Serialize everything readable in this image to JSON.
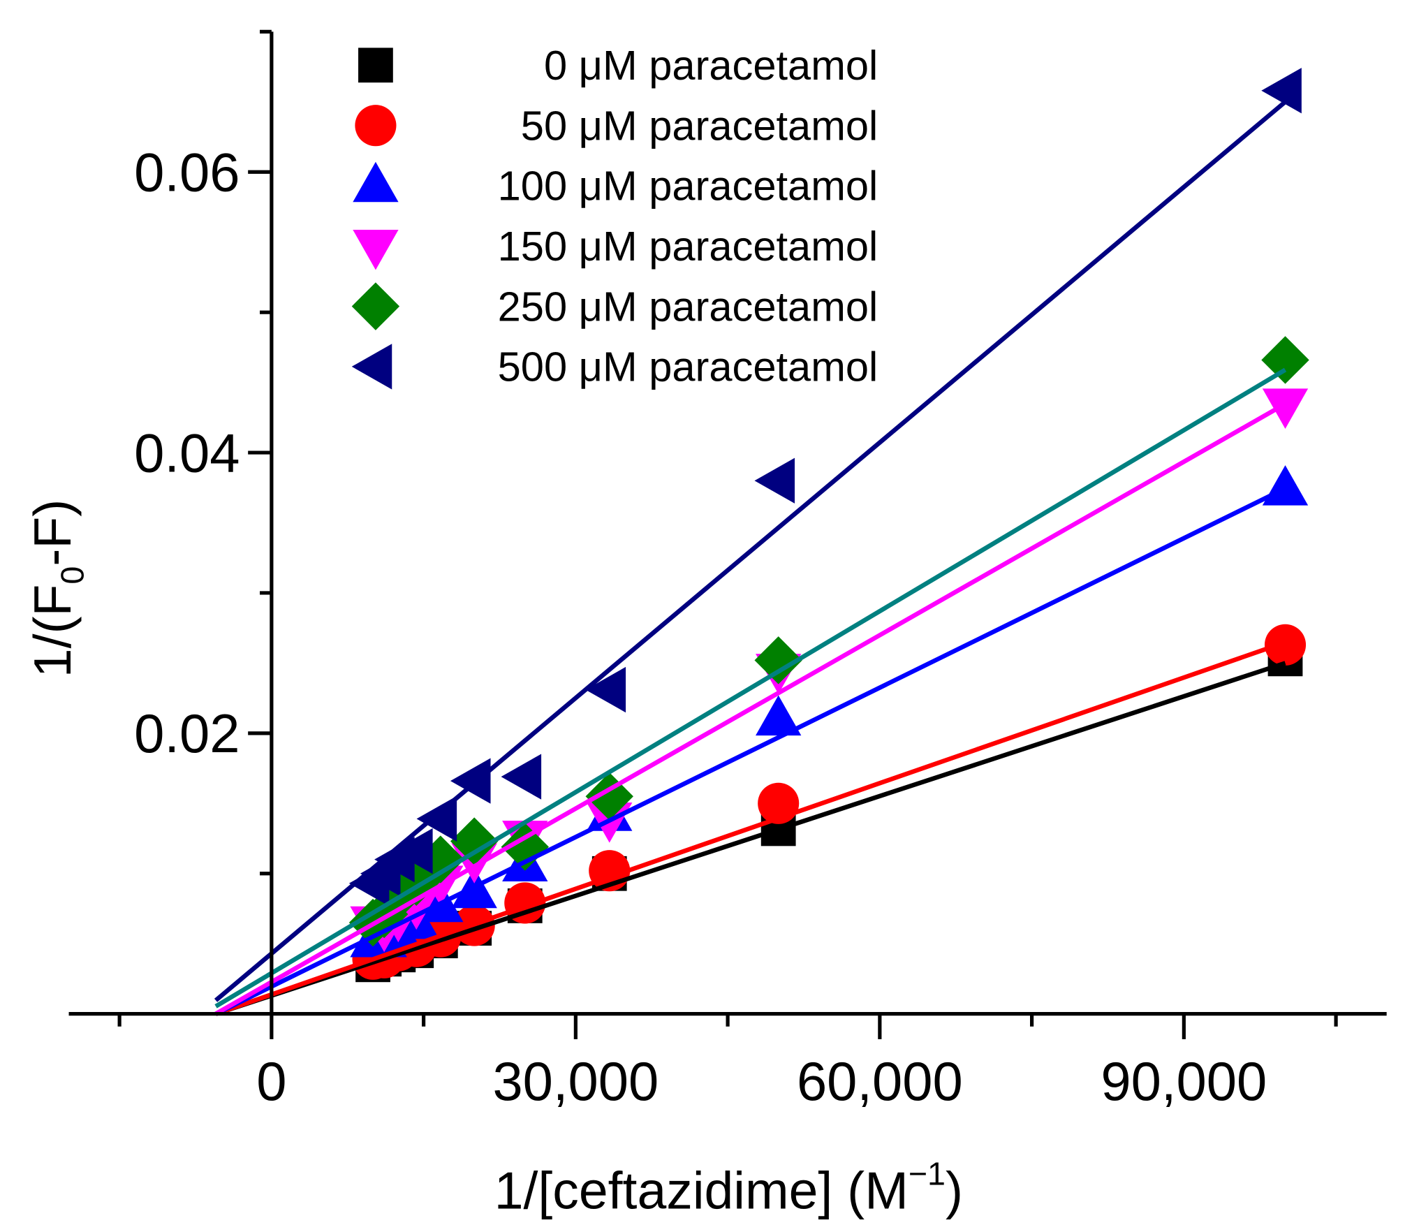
{
  "chart_data": {
    "type": "scatter",
    "title": "",
    "xlabel": "1/[ceftazidime] (M",
    "xlabel_sup": "−1",
    "xlabel_end": ")",
    "ylabel": "1/(F",
    "ylabel_sub": "0",
    "ylabel_end": "-F)",
    "xlim": [
      -20000,
      110000
    ],
    "ylim": [
      0,
      0.07
    ],
    "x_ticks": [
      0,
      30000,
      60000,
      90000
    ],
    "x_tick_labels": [
      "0",
      "30,000",
      "60,000",
      "90,000"
    ],
    "x_minor_step": 15000,
    "y_ticks": [
      0.02,
      0.04,
      0.06
    ],
    "y_tick_labels": [
      "0.02",
      "0.04",
      "0.06"
    ],
    "y_minor_step": 0.01,
    "grid": false,
    "legend_position": "top-center",
    "x": [
      100000,
      50000,
      33333,
      25000,
      20000,
      16667,
      14286,
      12500,
      11111,
      10000
    ],
    "series": [
      {
        "name": "0 μM paracetamol",
        "marker": "square",
        "color": "#000000",
        "line_color": "#000000",
        "values": [
          0.0253,
          0.0132,
          0.01,
          0.0077,
          0.0061,
          0.0052,
          0.0045,
          0.0042,
          0.0039,
          0.0035
        ],
        "fit": {
          "slope": 2.37e-07,
          "intercept": 0.0013
        }
      },
      {
        "name": "50 μM paracetamol",
        "marker": "circle",
        "color": "#ff0000",
        "line_color": "#ff0000",
        "values": [
          0.0263,
          0.015,
          0.0102,
          0.0079,
          0.0063,
          0.0055,
          0.0048,
          0.0045,
          0.004,
          0.0039
        ],
        "fit": {
          "slope": 2.51e-07,
          "intercept": 0.00138
        }
      },
      {
        "name": "100 μM paracetamol",
        "marker": "triangle-up",
        "color": "#0000ff",
        "line_color": "#0000ff",
        "values": [
          0.0374,
          0.021,
          0.0142,
          0.0106,
          0.0087,
          0.0077,
          0.0065,
          0.0058,
          0.0052,
          0.0052
        ],
        "fit": {
          "slope": 3.55e-07,
          "intercept": 0.00195
        }
      },
      {
        "name": "150 μM paracetamol",
        "marker": "triangle-down",
        "color": "#ff00ff",
        "line_color": "#ff00ff",
        "values": [
          0.0434,
          0.0245,
          0.0139,
          0.0126,
          0.011,
          0.0094,
          0.0077,
          0.0068,
          0.0061,
          0.0065
        ],
        "fit": {
          "slope": 4.12e-07,
          "intercept": 0.00227
        }
      },
      {
        "name": "250 μM paracetamol",
        "marker": "diamond",
        "color": "#008000",
        "line_color": "#008080",
        "values": [
          0.0466,
          0.0252,
          0.0155,
          0.0119,
          0.0123,
          0.011,
          0.0094,
          0.0084,
          0.0071,
          0.0065
        ],
        "fit": {
          "slope": 4.3e-07,
          "intercept": 0.0029
        }
      },
      {
        "name": "500 μM paracetamol",
        "marker": "triangle-left",
        "color": "#000080",
        "line_color": "#000080",
        "values": [
          0.0658,
          0.038,
          0.0231,
          0.0169,
          0.0166,
          0.0139,
          0.0116,
          0.011,
          0.01,
          0.0093
        ],
        "fit": {
          "slope": 6.07e-07,
          "intercept": 0.0043
        }
      }
    ],
    "fit_x_range": [
      -5500,
      100000
    ]
  }
}
